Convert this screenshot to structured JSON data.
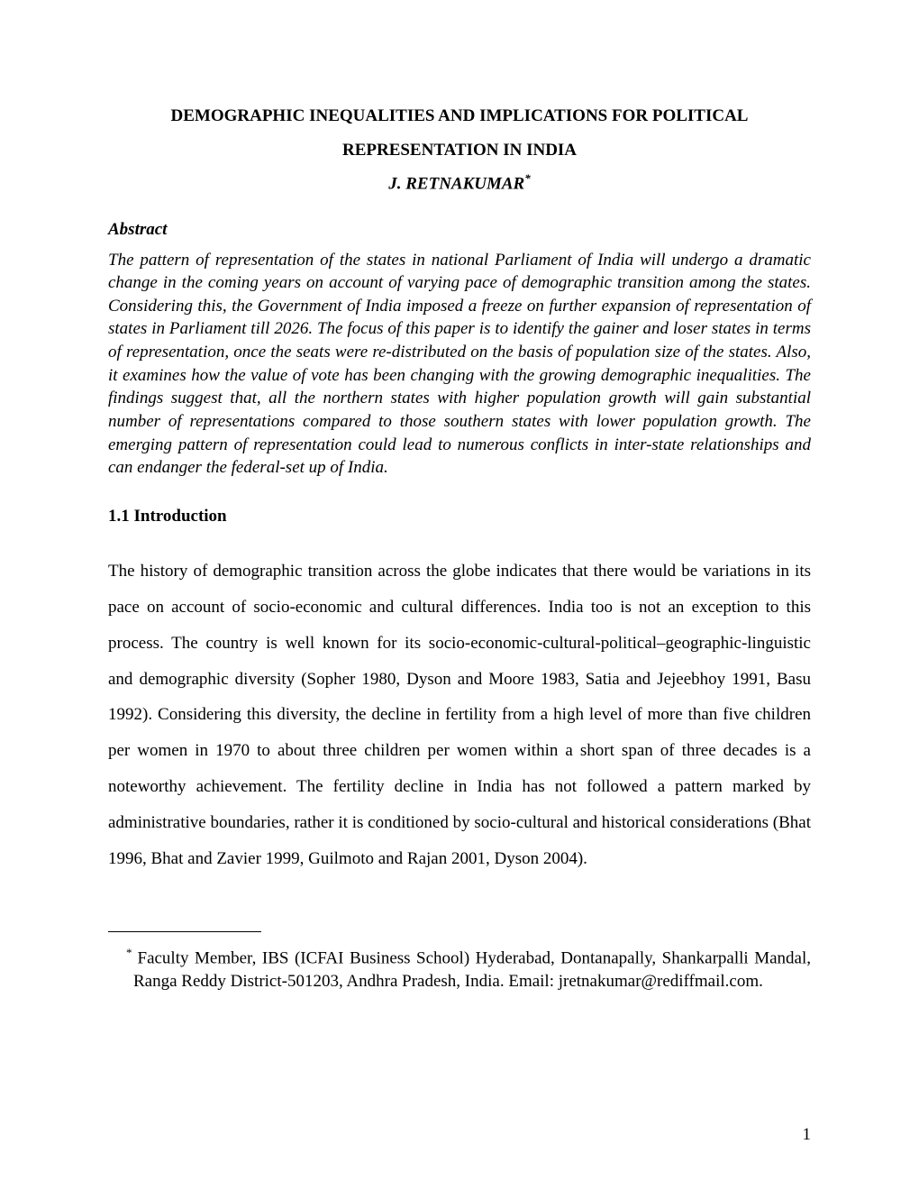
{
  "title": {
    "line1": "DEMOGRAPHIC INEQUALITIES AND IMPLICATIONS FOR POLITICAL",
    "line2": "REPRESENTATION IN INDIA"
  },
  "author": {
    "name": "J. RETNAKUMAR",
    "note_marker": "*"
  },
  "abstract": {
    "heading": "Abstract",
    "body": "The pattern of representation of the states in national Parliament of India will undergo a dramatic change in the coming years on account of varying pace of demographic transition among the states. Considering this, the Government of India imposed a freeze on further expansion of representation of states in Parliament till 2026. The focus of this paper is to identify the gainer and loser states in terms of representation, once the seats were re-distributed on the basis of population size of the states. Also, it examines how the value of vote has been changing with the growing demographic inequalities. The findings suggest that, all the northern states with higher population growth will gain substantial number of representations compared to those southern states with lower population growth. The emerging pattern of representation could lead to numerous conflicts in inter-state relationships and can endanger the federal-set up of India."
  },
  "section": {
    "heading": "1.1 Introduction",
    "body": "The history of demographic transition across the globe indicates that there would be variations in its pace on account of socio-economic and cultural differences. India too is not an exception to this process. The country is well known for its socio-economic-cultural-political–geographic-linguistic and demographic diversity (Sopher 1980, Dyson and Moore 1983, Satia and Jejeebhoy 1991, Basu 1992). Considering this diversity, the decline in fertility from a high level of more than five children per women in 1970 to about three children per women within a short span of three decades is a noteworthy achievement. The fertility decline in India has not followed a pattern marked by administrative boundaries, rather it is conditioned by socio-cultural and historical considerations (Bhat 1996, Bhat and Zavier 1999, Guilmoto and Rajan 2001, Dyson 2004)."
  },
  "footnote": {
    "marker": "*",
    "text": "Faculty Member, IBS (ICFAI Business School) Hyderabad, Dontanapally, Shankarpalli Mandal, Ranga Reddy District-501203, Andhra Pradesh, India. Email: jretnakumar@rediffmail.com."
  },
  "page_number": "1"
}
